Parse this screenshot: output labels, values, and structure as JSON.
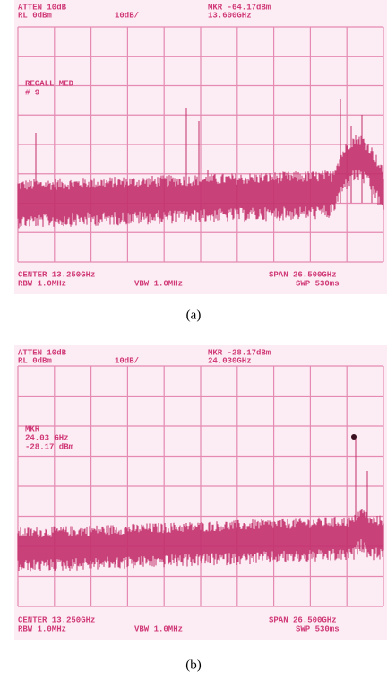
{
  "panels": [
    {
      "header": {
        "atten": "ATTEN 10dB",
        "marker": "MKR -64.17dBm",
        "ref_level": "RL 0dBm",
        "scale": "10dB/",
        "marker_freq": "13.600GHz"
      },
      "annotation": [
        "RECALL MED",
        "# 9"
      ],
      "footer": {
        "center": "CENTER 13.250GHz",
        "span": "SPAN 26.500GHz",
        "rbw": "RBW 1.0MHz",
        "vbw": "VBW 1.0MHz",
        "sweep": "SWP 530ms"
      },
      "caption": "(a)"
    },
    {
      "header": {
        "atten": "ATTEN 10dB",
        "marker": "MKR -28.17dBm",
        "ref_level": "RL 0dBm",
        "scale": "10dB/",
        "marker_freq": "24.030GHz"
      },
      "annotation": [
        "MKR",
        "24.03 GHz",
        "-28.17 dBm"
      ],
      "footer": {
        "center": "CENTER 13.250GHz",
        "span": "SPAN 26.500GHz",
        "rbw": "RBW 1.0MHz",
        "vbw": "VBW 1.0MHz",
        "sweep": "SWP 530ms"
      },
      "caption": "(b)"
    }
  ]
}
